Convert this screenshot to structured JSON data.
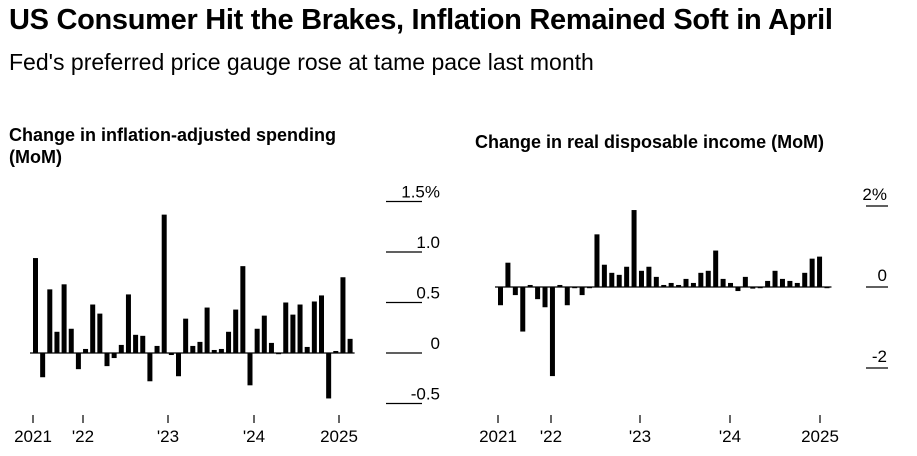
{
  "title": "US Consumer Hit the Brakes, Inflation Remained Soft in April",
  "subtitle": "Fed's preferred price gauge rose at tame pace last month",
  "chart_data": [
    {
      "type": "bar",
      "title_lines": [
        "Change in inflation-adjusted spending",
        "(MoM)"
      ],
      "x_start": "2021-01",
      "x_tick_labels": [
        "2021",
        "'22",
        "'23",
        "'24",
        "2025"
      ],
      "y_tick_labels": [
        "1.5%",
        "1.0",
        "0.5",
        "0",
        "-0.5"
      ],
      "y_ticks": [
        1.5,
        1.0,
        0.5,
        0,
        -0.5
      ],
      "ylim": [
        -0.5,
        1.5
      ],
      "values": [
        0.94,
        -0.24,
        0.63,
        0.21,
        0.68,
        0.24,
        -0.16,
        0.04,
        0.48,
        0.39,
        -0.13,
        -0.05,
        0.08,
        0.58,
        0.18,
        0.17,
        -0.28,
        0.07,
        1.37,
        -0.02,
        -0.23,
        0.34,
        0.07,
        0.11,
        0.45,
        0.03,
        0.04,
        0.21,
        0.43,
        0.86,
        -0.32,
        0.24,
        0.37,
        0.1,
        0.0,
        0.5,
        0.38,
        0.48,
        0.06,
        0.51,
        0.57,
        -0.45,
        0.02,
        0.75,
        0.14
      ]
    },
    {
      "type": "bar",
      "title_lines": [
        "Change in real disposable income (MoM)"
      ],
      "x_start": "2021-01",
      "x_tick_labels": [
        "2021",
        "'22",
        "'23",
        "'24",
        "2025"
      ],
      "y_tick_labels": [
        "2%",
        "0",
        "-2"
      ],
      "y_ticks": [
        2,
        0,
        -2
      ],
      "ylim": [
        -2,
        2
      ],
      "values": [
        -0.45,
        0.6,
        -0.2,
        -1.1,
        0.05,
        -0.3,
        -0.5,
        -2.2,
        0.05,
        -0.45,
        0.0,
        -0.2,
        0.0,
        1.3,
        0.55,
        0.35,
        0.3,
        0.5,
        1.9,
        0.4,
        0.5,
        0.25,
        0.05,
        0.1,
        0.05,
        0.2,
        0.1,
        0.35,
        0.4,
        0.9,
        0.2,
        0.1,
        -0.1,
        0.25,
        -0.04,
        -0.03,
        0.15,
        0.4,
        0.2,
        0.15,
        0.1,
        0.35,
        0.7,
        0.75,
        0.0
      ]
    }
  ]
}
